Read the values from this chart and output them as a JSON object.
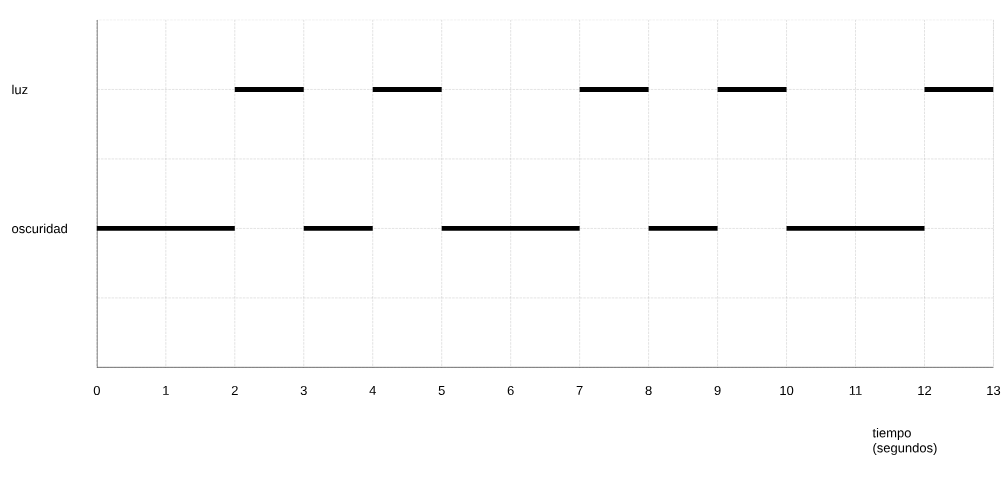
{
  "chart_data": {
    "type": "bar",
    "orientation": "horizontal",
    "xlabel": "tiempo (segundos)",
    "categories": [
      "luz",
      null,
      "oscuridad",
      null
    ],
    "xlim": [
      0,
      13
    ],
    "xticks": [
      0,
      1,
      2,
      3,
      4,
      5,
      6,
      7,
      8,
      9,
      10,
      11,
      12,
      13
    ],
    "grid": true,
    "series": [
      {
        "color": "#000000",
        "base": [
          2,
          null,
          0,
          null
        ],
        "values": [
          1,
          null,
          2,
          null
        ]
      },
      {
        "color": "#000000",
        "base": [
          4,
          null,
          3,
          null
        ],
        "values": [
          1,
          null,
          1,
          null
        ]
      },
      {
        "color": "#000000",
        "base": [
          7,
          null,
          5,
          null
        ],
        "values": [
          1,
          null,
          2,
          null
        ]
      },
      {
        "color": "#000000",
        "base": [
          9,
          null,
          8,
          null
        ],
        "values": [
          1,
          null,
          1,
          null
        ]
      },
      {
        "color": "#000000",
        "base": [
          12,
          null,
          10,
          null
        ],
        "values": [
          1,
          null,
          2,
          null
        ]
      }
    ]
  }
}
